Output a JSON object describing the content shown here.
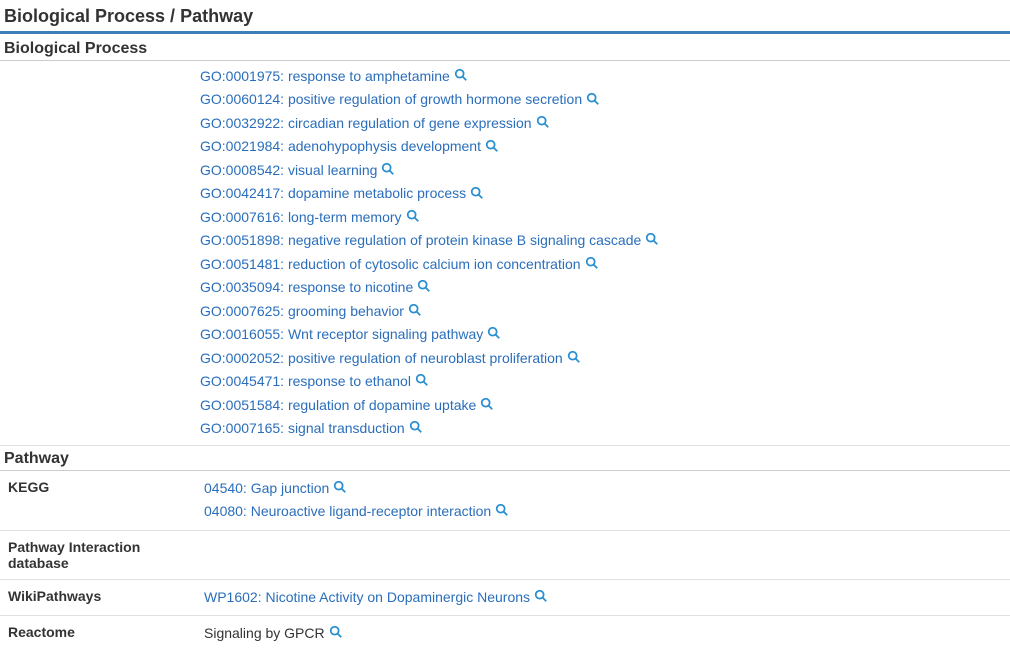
{
  "colors": {
    "main_border": "#3b7fb6",
    "sub_border": "#cccccc",
    "row_border": "#e0e0e0",
    "link": "#2a6ebb",
    "icon": "#2a8fd1",
    "text": "#333333"
  },
  "main_title": "Biological Process / Pathway",
  "bio_process": {
    "title": "Biological Process",
    "items": [
      {
        "id": "GO:0001975",
        "label": "response to amphetamine"
      },
      {
        "id": "GO:0060124",
        "label": "positive regulation of growth hormone secretion"
      },
      {
        "id": "GO:0032922",
        "label": "circadian regulation of gene expression"
      },
      {
        "id": "GO:0021984",
        "label": "adenohypophysis development"
      },
      {
        "id": "GO:0008542",
        "label": "visual learning"
      },
      {
        "id": "GO:0042417",
        "label": "dopamine metabolic process"
      },
      {
        "id": "GO:0007616",
        "label": "long-term memory"
      },
      {
        "id": "GO:0051898",
        "label": "negative regulation of protein kinase B signaling cascade"
      },
      {
        "id": "GO:0051481",
        "label": "reduction of cytosolic calcium ion concentration"
      },
      {
        "id": "GO:0035094",
        "label": "response to nicotine"
      },
      {
        "id": "GO:0007625",
        "label": "grooming behavior"
      },
      {
        "id": "GO:0016055",
        "label": "Wnt receptor signaling pathway"
      },
      {
        "id": "GO:0002052",
        "label": "positive regulation of neuroblast proliferation"
      },
      {
        "id": "GO:0045471",
        "label": "response to ethanol"
      },
      {
        "id": "GO:0051584",
        "label": "regulation of dopamine uptake"
      },
      {
        "id": "GO:0007165",
        "label": "signal transduction"
      }
    ]
  },
  "pathway": {
    "title": "Pathway",
    "rows": [
      {
        "label": "KEGG",
        "items": [
          {
            "id": "04540",
            "label": "Gap junction",
            "link": true
          },
          {
            "id": "04080",
            "label": "Neuroactive ligand-receptor interaction",
            "link": true
          }
        ]
      },
      {
        "label": "Pathway Interaction database",
        "items": []
      },
      {
        "label": "WikiPathways",
        "items": [
          {
            "id": "WP1602",
            "label": "Nicotine Activity on Dopaminergic Neurons",
            "link": true
          }
        ]
      },
      {
        "label": "Reactome",
        "items": [
          {
            "id": "",
            "label": "Signaling by GPCR",
            "link": false
          }
        ]
      }
    ]
  }
}
